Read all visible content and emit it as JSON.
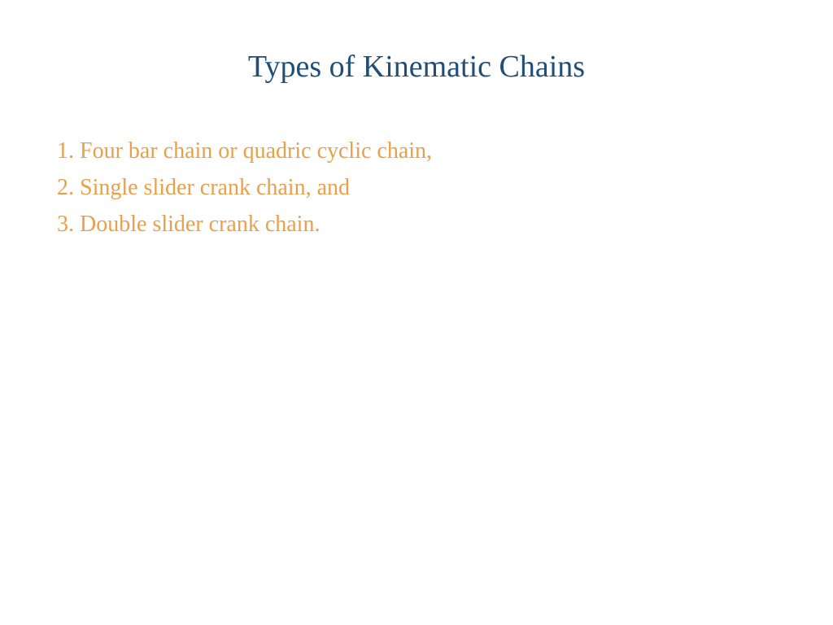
{
  "slide": {
    "title": "Types of Kinematic Chains",
    "title_color": "#1f4e79",
    "title_fontsize": 38,
    "background_color": "#ffffff",
    "items": [
      "1. Four bar chain or quadric cyclic chain,",
      "2. Single slider crank chain, and",
      "3. Double slider crank chain."
    ],
    "item_color": "#e8a04a",
    "item_fontsize": 28,
    "font_family": "Georgia, Times New Roman, serif"
  }
}
